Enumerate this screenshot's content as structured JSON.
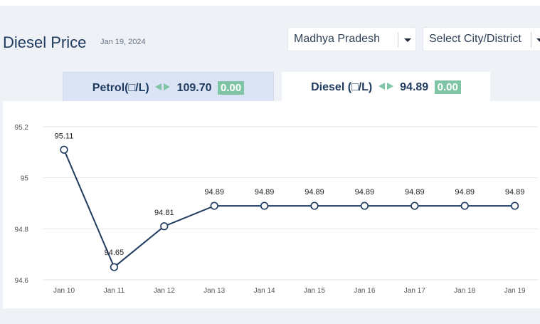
{
  "header": {
    "title": "Diesel Price",
    "date": "Jan 19, 2024"
  },
  "filters": {
    "state": "Madhya Pradesh",
    "city": "Select City/District"
  },
  "tabs": [
    {
      "label": "Petrol(□/L)",
      "price": "109.70",
      "change": "0.00",
      "active": false
    },
    {
      "label": "Diesel (□/L)",
      "price": "94.89",
      "change": "0.00",
      "active": true
    }
  ],
  "colors": {
    "line": "#1e3a5f",
    "accent": "#7ec4a5",
    "grid": "#e6e6e6"
  },
  "chart_data": {
    "type": "line",
    "categories": [
      "Jan 10",
      "Jan 11",
      "Jan 12",
      "Jan 13",
      "Jan 14",
      "Jan 15",
      "Jan 16",
      "Jan 17",
      "Jan 18",
      "Jan 19"
    ],
    "values": [
      95.11,
      94.65,
      94.81,
      94.89,
      94.89,
      94.89,
      94.89,
      94.89,
      94.89,
      94.89
    ],
    "data_labels": [
      "95.11",
      "94.65",
      "94.81",
      "94.89",
      "94.89",
      "94.89",
      "94.89",
      "94.89",
      "94.89",
      "94.89"
    ],
    "yticks": [
      94.6,
      94.8,
      95,
      95.2
    ],
    "ytick_labels": [
      "94.6",
      "94.8",
      "95",
      "95.2"
    ],
    "ylim": [
      94.6,
      95.2
    ],
    "grid": true
  }
}
